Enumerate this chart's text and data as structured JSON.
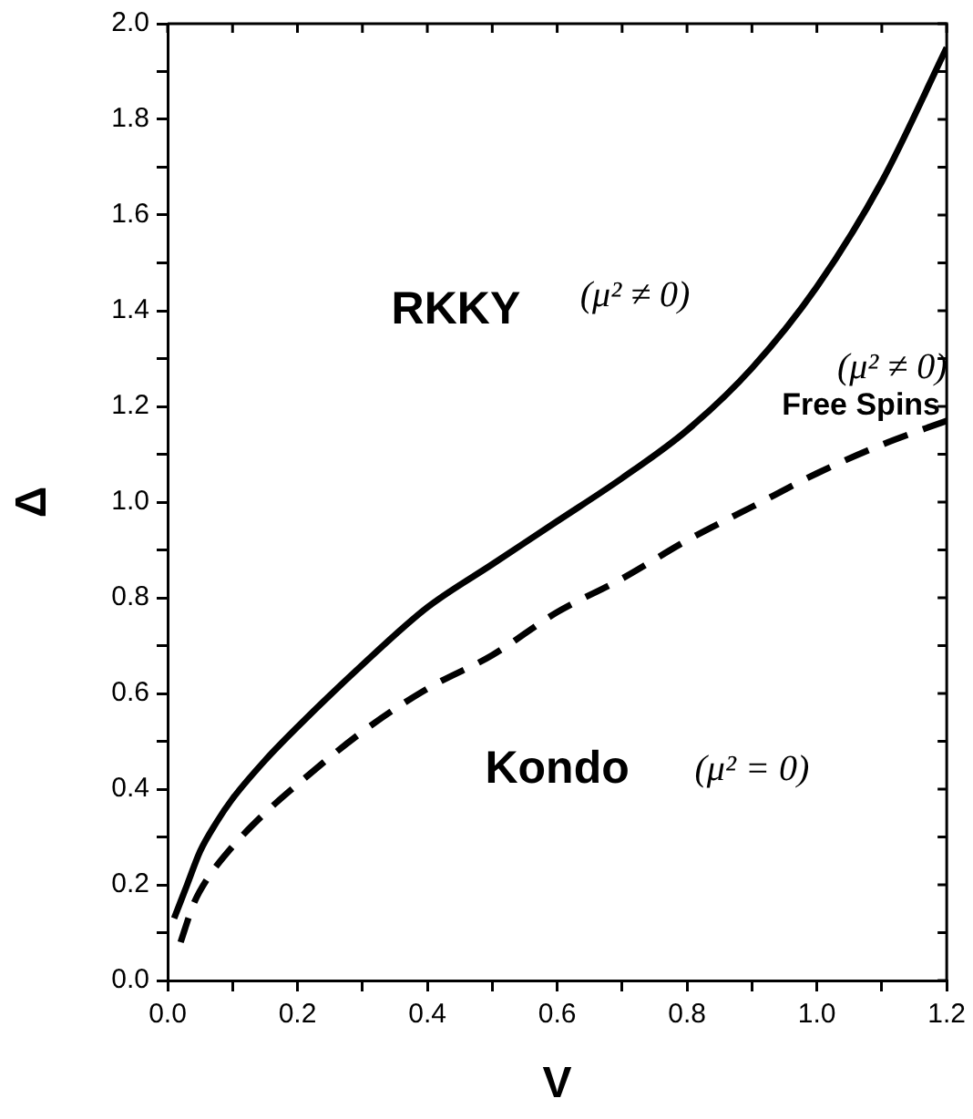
{
  "chart_data": {
    "type": "line",
    "xlabel": "V",
    "ylabel": "Δ",
    "series": [
      {
        "color": "#000000",
        "line_style": "solid",
        "x": [
          0.01,
          0.03,
          0.05,
          0.075,
          0.1,
          0.15,
          0.2,
          0.3,
          0.4,
          0.5,
          0.6,
          0.7,
          0.8,
          0.9,
          1.0,
          1.1,
          1.2
        ],
        "values": [
          0.13,
          0.2,
          0.27,
          0.33,
          0.38,
          0.46,
          0.53,
          0.66,
          0.78,
          0.87,
          0.96,
          1.05,
          1.15,
          1.28,
          1.45,
          1.67,
          1.95
        ]
      },
      {
        "color": "#000000",
        "line_style": "dashed",
        "x": [
          0.02,
          0.04,
          0.06,
          0.1,
          0.15,
          0.2,
          0.3,
          0.4,
          0.5,
          0.6,
          0.7,
          0.8,
          0.9,
          1.0,
          1.1,
          1.2
        ],
        "values": [
          0.08,
          0.16,
          0.21,
          0.28,
          0.35,
          0.41,
          0.52,
          0.61,
          0.68,
          0.77,
          0.84,
          0.92,
          0.99,
          1.06,
          1.12,
          1.17
        ]
      }
    ],
    "xlim": [
      0,
      1.2
    ],
    "ylim": [
      0,
      2.0
    ],
    "xticks": [
      {
        "value": 0,
        "label": "0.0"
      },
      {
        "value": 0.1,
        "label": null
      },
      {
        "value": 0.2,
        "label": "0.2"
      },
      {
        "value": 0.3,
        "label": null
      },
      {
        "value": 0.4,
        "label": "0.4"
      },
      {
        "value": 0.5,
        "label": null
      },
      {
        "value": 0.6,
        "label": "0.6"
      },
      {
        "value": 0.7,
        "label": null
      },
      {
        "value": 0.8,
        "label": "0.8"
      },
      {
        "value": 0.9,
        "label": null
      },
      {
        "value": 1.0,
        "label": "1.0"
      },
      {
        "value": 1.1,
        "label": null
      },
      {
        "value": 1.2,
        "label": "1.2"
      }
    ],
    "yticks": [
      {
        "value": 0,
        "label": "0.0"
      },
      {
        "value": 0.1,
        "label": null
      },
      {
        "value": 0.2,
        "label": "0.2"
      },
      {
        "value": 0.3,
        "label": null
      },
      {
        "value": 0.4,
        "label": "0.4"
      },
      {
        "value": 0.5,
        "label": null
      },
      {
        "value": 0.6,
        "label": "0.6"
      },
      {
        "value": 0.7,
        "label": null
      },
      {
        "value": 0.8,
        "label": "0.8"
      },
      {
        "value": 0.9,
        "label": null
      },
      {
        "value": 1.0,
        "label": "1.0"
      },
      {
        "value": 1.1,
        "label": null
      },
      {
        "value": 1.2,
        "label": "1.2"
      },
      {
        "value": 1.3,
        "label": null
      },
      {
        "value": 1.4,
        "label": "1.4"
      },
      {
        "value": 1.5,
        "label": null
      },
      {
        "value": 1.6,
        "label": "1.6"
      },
      {
        "value": 1.7,
        "label": null
      },
      {
        "value": 1.8,
        "label": "1.8"
      },
      {
        "value": 1.9,
        "label": null
      },
      {
        "value": 2.0,
        "label": "2.0"
      }
    ],
    "annotations": [
      "RKKY",
      "(μ² ≠ 0)",
      "(μ² ≠ 0)",
      "Free Spins",
      "Kondo",
      "(μ² = 0)"
    ],
    "grid": false,
    "legend": false,
    "marker": "none"
  }
}
